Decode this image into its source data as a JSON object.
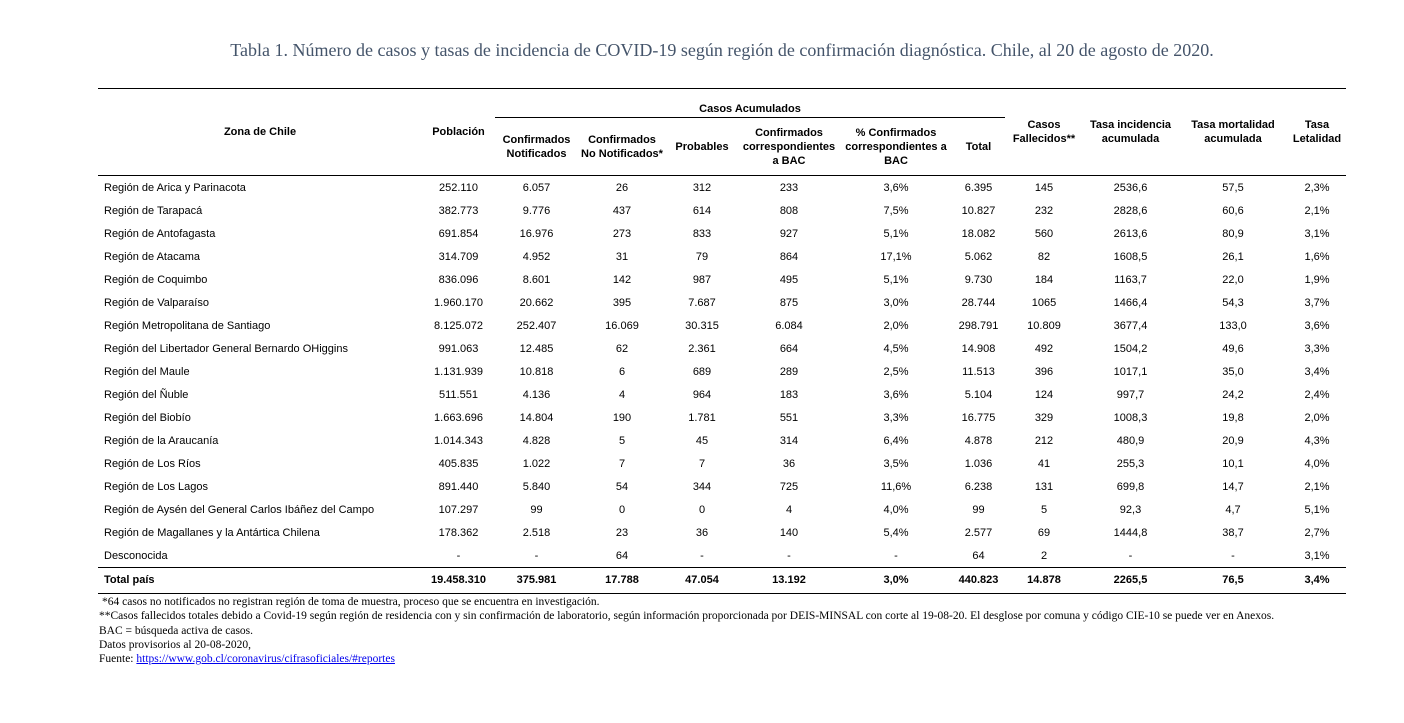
{
  "title": "Tabla 1. Número de casos y tasas de incidencia de COVID-19 según región de confirmación diagnóstica. Chile, al 20 de agosto de 2020.",
  "table": {
    "group_header": "Casos Acumulados",
    "columns": [
      "Zona de Chile",
      "Población",
      "Confirmados Notificados",
      "Confirmados No Notificados*",
      "Probables",
      "Confirmados correspondientes a BAC",
      "% Confirmados correspondientes a BAC",
      "Total",
      "Casos Fallecidos**",
      "Tasa incidencia acumulada",
      "Tasa mortalidad acumulada",
      "Tasa Letalidad"
    ],
    "rows": [
      [
        "Región de Arica y Parinacota",
        "252.110",
        "6.057",
        "26",
        "312",
        "233",
        "3,6%",
        "6.395",
        "145",
        "2536,6",
        "57,5",
        "2,3%"
      ],
      [
        "Región de Tarapacá",
        "382.773",
        "9.776",
        "437",
        "614",
        "808",
        "7,5%",
        "10.827",
        "232",
        "2828,6",
        "60,6",
        "2,1%"
      ],
      [
        "Región de Antofagasta",
        "691.854",
        "16.976",
        "273",
        "833",
        "927",
        "5,1%",
        "18.082",
        "560",
        "2613,6",
        "80,9",
        "3,1%"
      ],
      [
        "Región de Atacama",
        "314.709",
        "4.952",
        "31",
        "79",
        "864",
        "17,1%",
        "5.062",
        "82",
        "1608,5",
        "26,1",
        "1,6%"
      ],
      [
        "Región de Coquimbo",
        "836.096",
        "8.601",
        "142",
        "987",
        "495",
        "5,1%",
        "9.730",
        "184",
        "1163,7",
        "22,0",
        "1,9%"
      ],
      [
        "Región de Valparaíso",
        "1.960.170",
        "20.662",
        "395",
        "7.687",
        "875",
        "3,0%",
        "28.744",
        "1065",
        "1466,4",
        "54,3",
        "3,7%"
      ],
      [
        "Región Metropolitana de Santiago",
        "8.125.072",
        "252.407",
        "16.069",
        "30.315",
        "6.084",
        "2,0%",
        "298.791",
        "10.809",
        "3677,4",
        "133,0",
        "3,6%"
      ],
      [
        "Región del Libertador General Bernardo OHiggins",
        "991.063",
        "12.485",
        "62",
        "2.361",
        "664",
        "4,5%",
        "14.908",
        "492",
        "1504,2",
        "49,6",
        "3,3%"
      ],
      [
        "Región del Maule",
        "1.131.939",
        "10.818",
        "6",
        "689",
        "289",
        "2,5%",
        "11.513",
        "396",
        "1017,1",
        "35,0",
        "3,4%"
      ],
      [
        "Región del Ñuble",
        "511.551",
        "4.136",
        "4",
        "964",
        "183",
        "3,6%",
        "5.104",
        "124",
        "997,7",
        "24,2",
        "2,4%"
      ],
      [
        "Región del Biobío",
        "1.663.696",
        "14.804",
        "190",
        "1.781",
        "551",
        "3,3%",
        "16.775",
        "329",
        "1008,3",
        "19,8",
        "2,0%"
      ],
      [
        "Región de la Araucanía",
        "1.014.343",
        "4.828",
        "5",
        "45",
        "314",
        "6,4%",
        "4.878",
        "212",
        "480,9",
        "20,9",
        "4,3%"
      ],
      [
        "Región de Los Ríos",
        "405.835",
        "1.022",
        "7",
        "7",
        "36",
        "3,5%",
        "1.036",
        "41",
        "255,3",
        "10,1",
        "4,0%"
      ],
      [
        "Región de Los Lagos",
        "891.440",
        "5.840",
        "54",
        "344",
        "725",
        "11,6%",
        "6.238",
        "131",
        "699,8",
        "14,7",
        "2,1%"
      ],
      [
        "Región de Aysén del General Carlos Ibáñez del Campo",
        "107.297",
        "99",
        "0",
        "0",
        "4",
        "4,0%",
        "99",
        "5",
        "92,3",
        "4,7",
        "5,1%"
      ],
      [
        "Región de Magallanes y la Antártica Chilena",
        "178.362",
        "2.518",
        "23",
        "36",
        "140",
        "5,4%",
        "2.577",
        "69",
        "1444,8",
        "38,7",
        "2,7%"
      ],
      [
        "Desconocida",
        "-",
        "-",
        "64",
        "-",
        "-",
        "-",
        "64",
        "2",
        "-",
        "-",
        "3,1%"
      ]
    ],
    "total": [
      "Total país",
      "19.458.310",
      "375.981",
      "17.788",
      "47.054",
      "13.192",
      "3,0%",
      "440.823",
      "14.878",
      "2265,5",
      "76,5",
      "3,4%"
    ]
  },
  "footnotes": [
    "*64 casos no notificados no registran región de toma de muestra, proceso que se encuentra en investigación.",
    "**Casos fallecidos totales debido a Covid-19 según región de residencia con y sin confirmación de laboratorio, según información proporcionada por DEIS-MINSAL con corte al 19-08-20. El desglose por comuna y código CIE-10 se puede ver en Anexos.",
    "BAC = búsqueda activa de casos.",
    "Datos provisorios al 20-08-2020,"
  ],
  "source": {
    "label": "Fuente:",
    "url": "https://www.gob.cl/coronavirus/cifrasoficiales/#reportes"
  }
}
